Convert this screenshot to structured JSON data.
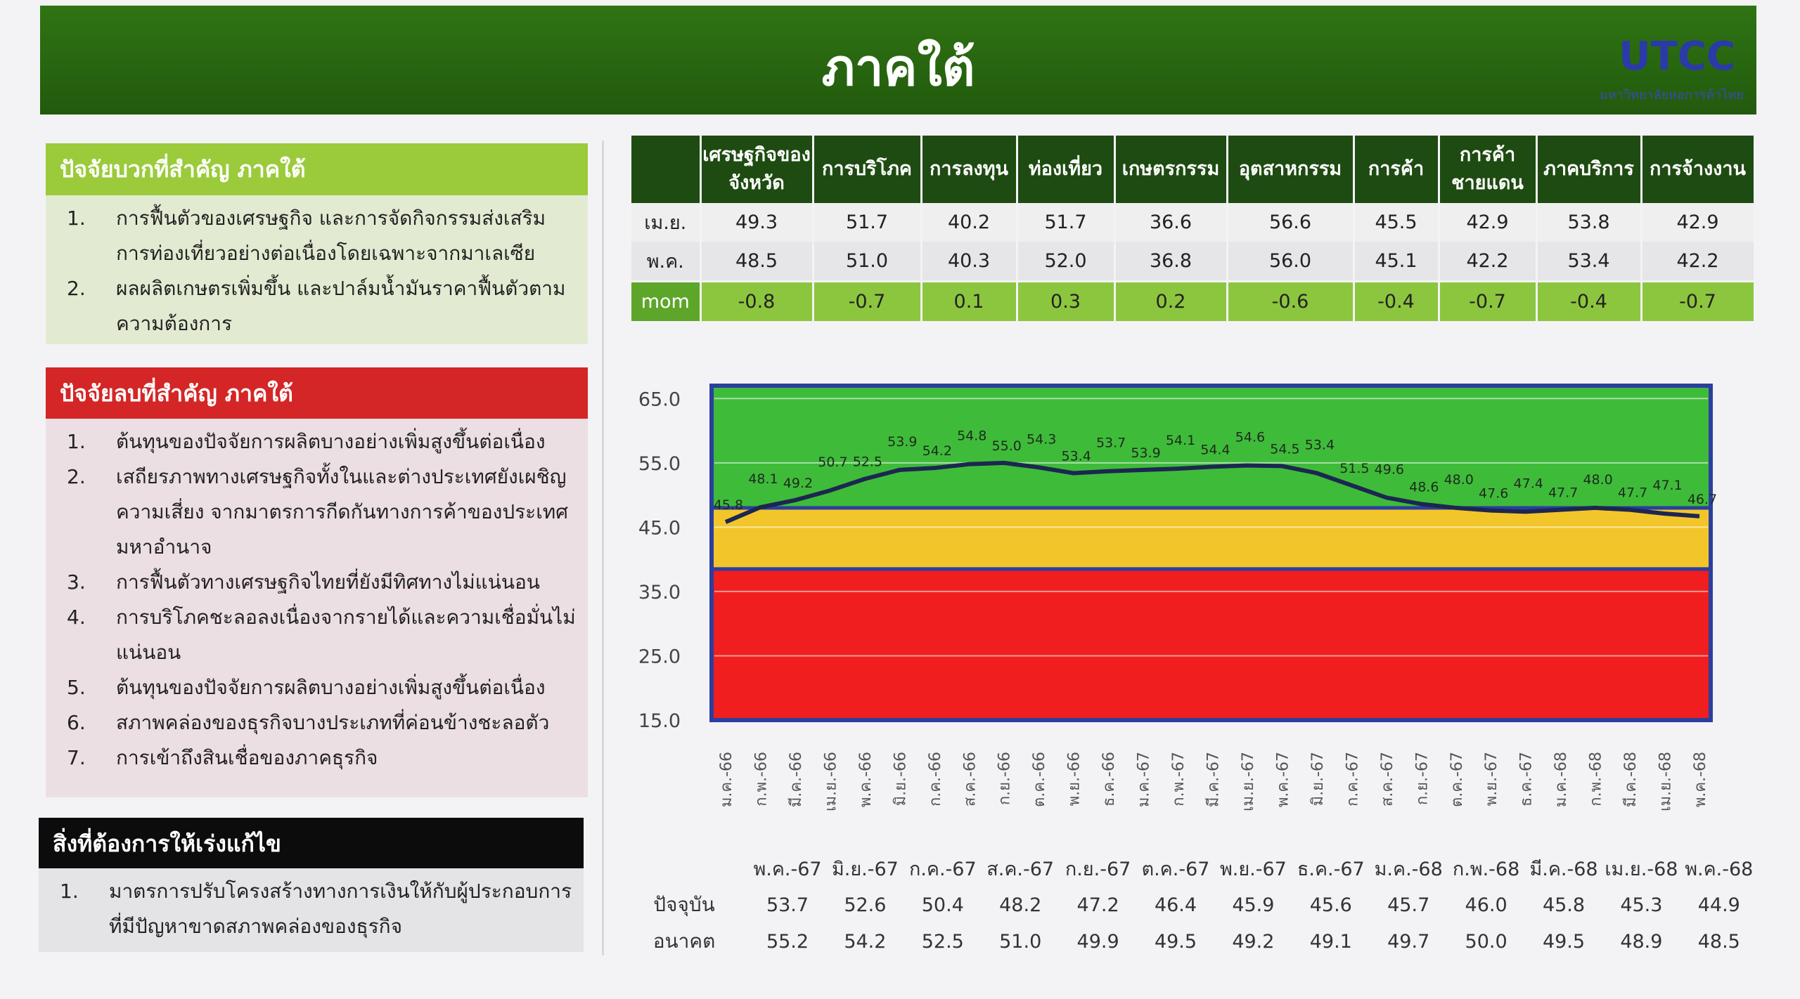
{
  "header": {
    "title": "ภาคใต้",
    "logo": "UTCC",
    "logo_subtitle": "มหาวิทยาลัยหอการค้าไทย"
  },
  "positive": {
    "title": "ปัจจัยบวกที่สำคัญ ภาคใต้",
    "items": [
      {
        "num": "1.",
        "text": "การฟื้นตัวของเศรษฐกิจ และการจัดกิจกรรมส่งเสริมการท่องเที่ยวอย่างต่อเนื่องโดยเฉพาะจากมาเลเซีย"
      },
      {
        "num": "2.",
        "text": "ผลผลิตเกษตรเพิ่มขึ้น และปาล์มน้ำมันราคาฟื้นตัวตามความต้องการ"
      }
    ]
  },
  "negative": {
    "title": "ปัจจัยลบที่สำคัญ ภาคใต้",
    "items": [
      {
        "num": "1.",
        "text": "ต้นทุนของปัจจัยการผลิตบางอย่างเพิ่มสูงขึ้นต่อเนื่อง"
      },
      {
        "num": "2.",
        "text": "เสถียรภาพทางเศรษฐกิจทั้งในและต่างประเทศยังเผชิญความเสี่ยง จากมาตรการกีดกันทางการค้าของประเทศมหาอำนาจ"
      },
      {
        "num": "3.",
        "text": "การฟื้นตัวทางเศรษฐกิจไทยที่ยังมีทิศทางไม่แน่นอน"
      },
      {
        "num": "4.",
        "text": "การบริโภคชะลอลงเนื่องจากรายได้และความเชื่อมั่นไม่แน่นอน"
      },
      {
        "num": "5.",
        "text": "ต้นทุนของปัจจัยการผลิตบางอย่างเพิ่มสูงขึ้นต่อเนื่อง"
      },
      {
        "num": "6.",
        "text": "สภาพคล่องของธุรกิจบางประเภทที่ค่อนข้างชะลอตัว"
      },
      {
        "num": "7.",
        "text": "การเข้าถึงสินเชื่อของภาคธุรกิจ"
      }
    ]
  },
  "urgent": {
    "title": "สิ่งที่ต้องการให้เร่งแก้ไข",
    "items": [
      {
        "num": "1.",
        "text": "มาตรการปรับโครงสร้างทางการเงินให้กับผู้ประกอบการที่มีปัญหาขาดสภาพคล่องของธุรกิจ"
      }
    ]
  },
  "index_table": {
    "columns": [
      "เศรษฐกิจของจังหวัด",
      "การบริโภค",
      "การลงทุน",
      "ท่องเที่ยว",
      "เกษตรกรรม",
      "อุตสาหกรรม",
      "การค้า",
      "การค้าชายแดน",
      "ภาคบริการ",
      "การจ้างงาน"
    ],
    "rows": [
      {
        "label": "เม.ย.",
        "values": [
          "49.3",
          "51.7",
          "40.2",
          "51.7",
          "36.6",
          "56.6",
          "45.5",
          "42.9",
          "53.8",
          "42.9"
        ]
      },
      {
        "label": "พ.ค.",
        "values": [
          "48.5",
          "51.0",
          "40.3",
          "52.0",
          "36.8",
          "56.0",
          "45.1",
          "42.2",
          "53.4",
          "42.2"
        ]
      },
      {
        "label": "mom",
        "values": [
          "-0.8",
          "-0.7",
          "0.1",
          "0.3",
          "0.2",
          "-0.6",
          "-0.4",
          "-0.7",
          "-0.4",
          "-0.7"
        ]
      }
    ]
  },
  "chart_data": {
    "type": "line",
    "categories": [
      "ม.ค.-66",
      "ก.พ.-66",
      "มี.ค.-66",
      "เม.ย.-66",
      "พ.ค.-66",
      "มิ.ย.-66",
      "ก.ค.-66",
      "ส.ค.-66",
      "ก.ย.-66",
      "ต.ค.-66",
      "พ.ย.-66",
      "ธ.ค.-66",
      "ม.ค.-67",
      "ก.พ.-67",
      "มี.ค.-67",
      "เม.ย.-67",
      "พ.ค.-67",
      "มิ.ย.-67",
      "ก.ค.-67",
      "ส.ค.-67",
      "ก.ย.-67",
      "ต.ค.-67",
      "พ.ย.-67",
      "ธ.ค.-67",
      "ม.ค.-68",
      "ก.พ.-68",
      "มี.ค.-68",
      "เม.ย.-68",
      "พ.ค.-68"
    ],
    "values": [
      45.8,
      48.1,
      49.2,
      50.7,
      52.5,
      53.9,
      54.2,
      54.8,
      55.0,
      54.3,
      53.4,
      53.7,
      53.9,
      54.1,
      54.4,
      54.6,
      54.5,
      53.4,
      51.5,
      49.6,
      48.6,
      48.0,
      47.6,
      47.4,
      47.7,
      48.0,
      47.7,
      47.1,
      46.7
    ],
    "value_labels": [
      "45.8",
      "48.1",
      "49.2",
      "50.7",
      "52.5",
      "53.9",
      "54.2",
      "54.8",
      "55.0",
      "54.3",
      "53.4",
      "53.7",
      "53.9",
      "54.1",
      "54.4",
      "54.6",
      "54.5",
      "53.4",
      "51.5",
      "49.6",
      "48.6",
      "48.0",
      "47.6",
      "47.4",
      "47.7",
      "48.0",
      "47.7",
      "47.1",
      "46.7"
    ],
    "color": "#1c2750",
    "ylim": [
      15,
      67
    ],
    "yticks": [
      {
        "value": 15,
        "label": "15.0"
      },
      {
        "value": 25,
        "label": "25.0"
      },
      {
        "value": 35,
        "label": "35.0"
      },
      {
        "value": 45,
        "label": "45.0"
      },
      {
        "value": 55,
        "label": "55.0"
      },
      {
        "value": 65,
        "label": "65.0"
      }
    ],
    "grid": true,
    "zones": [
      {
        "from": 15,
        "to": 38.5,
        "color": "#f01e1e"
      },
      {
        "from": 38.5,
        "to": 48,
        "color": "#f2c62a"
      },
      {
        "from": 48,
        "to": 67,
        "color": "#3fbb3a"
      }
    ]
  },
  "forecast_table": {
    "months": [
      "พ.ค.-67",
      "มิ.ย.-67",
      "ก.ค.-67",
      "ส.ค.-67",
      "ก.ย.-67",
      "ต.ค.-67",
      "พ.ย.-67",
      "ธ.ค.-67",
      "ม.ค.-68",
      "ก.พ.-68",
      "มี.ค.-68",
      "เม.ย.-68",
      "พ.ค.-68"
    ],
    "rows": [
      {
        "label": "ปัจจุบัน",
        "values": [
          "53.7",
          "52.6",
          "50.4",
          "48.2",
          "47.2",
          "46.4",
          "45.9",
          "45.6",
          "45.7",
          "46.0",
          "45.8",
          "45.3",
          "44.9"
        ]
      },
      {
        "label": "อนาคต",
        "values": [
          "55.2",
          "54.2",
          "52.5",
          "51.0",
          "49.9",
          "49.5",
          "49.2",
          "49.1",
          "49.7",
          "50.0",
          "49.5",
          "48.9",
          "48.5"
        ]
      }
    ]
  }
}
